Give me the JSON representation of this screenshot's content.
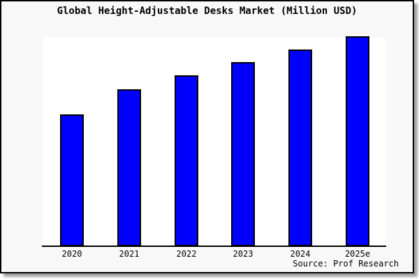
{
  "title": "Global Height-Adjustable Desks Market (Million USD)",
  "source": "Source: Prof Research",
  "colors": {
    "figure_background": "#f8f8f8",
    "plot_background": "#ffffff",
    "bar_fill": "#0000ff",
    "bar_border": "#000000",
    "axis_line": "#000000",
    "text": "#000000",
    "frame_border": "#000000"
  },
  "chart_data": {
    "type": "bar",
    "title": "Global Height-Adjustable Desks Market (Million USD)",
    "categories": [
      "2020",
      "2021",
      "2022",
      "2023",
      "2024",
      "2025e"
    ],
    "values": [
      189,
      225,
      245,
      264,
      282,
      301
    ],
    "value_unit": "relative height (no y-axis tick labels shown in chart)",
    "xlabel": "",
    "ylabel": "",
    "ylim": [
      0,
      299
    ],
    "grid": false,
    "legend": false,
    "source": "Source: Prof Research"
  }
}
